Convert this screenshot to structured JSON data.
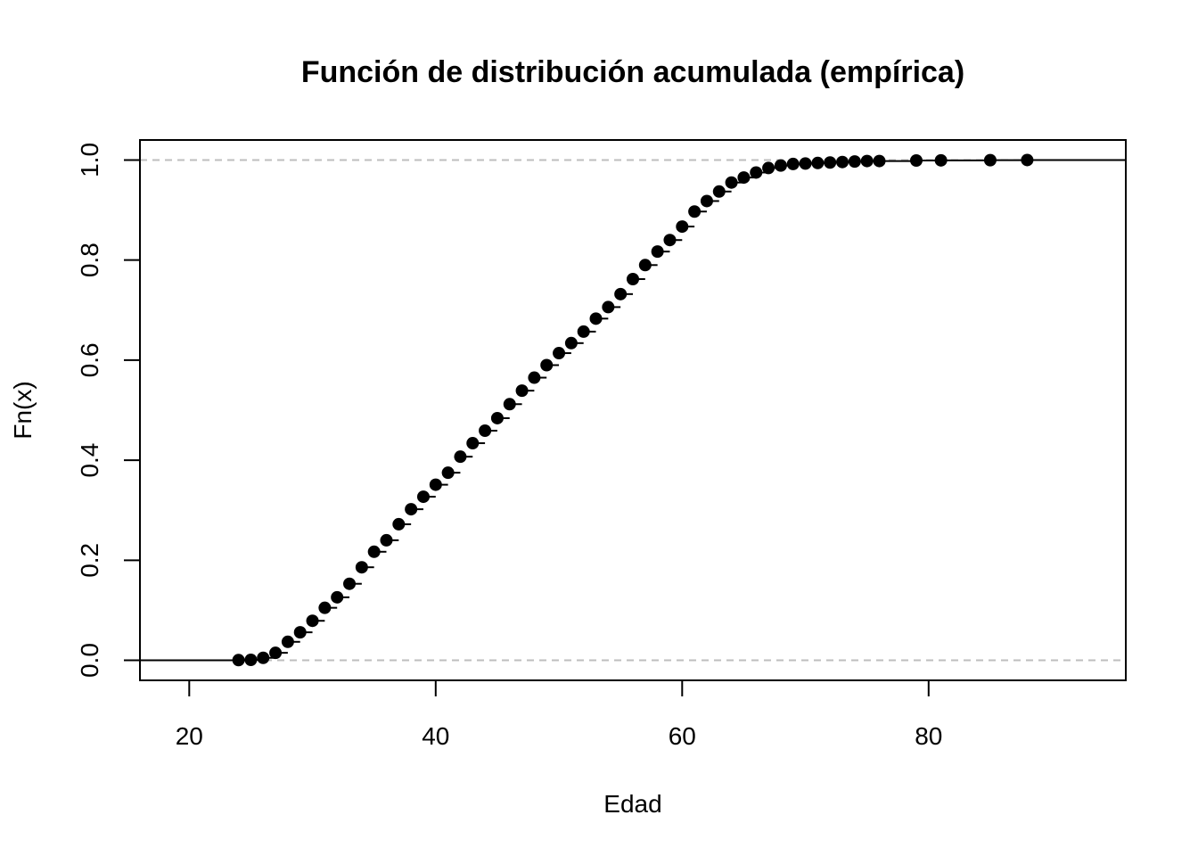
{
  "chart_data": {
    "type": "scatter",
    "subtype": "empirical-cdf-step",
    "title": "Función de distribución acumulada (empírica)",
    "xlabel": "Edad",
    "ylabel": "Fn(x)",
    "xlim": [
      16,
      96
    ],
    "ylim": [
      -0.04,
      1.04
    ],
    "xticks": [
      20,
      40,
      60,
      80
    ],
    "yticks": [
      0.0,
      0.2,
      0.4,
      0.6,
      0.8,
      1.0
    ],
    "xtick_labels": [
      "20",
      "40",
      "60",
      "80"
    ],
    "ytick_labels": [
      "0.0",
      "0.2",
      "0.4",
      "0.6",
      "0.8",
      "1.0"
    ],
    "reference_lines": [
      0,
      1
    ],
    "grid": false,
    "legend": "none",
    "colors": {
      "points": "#000000",
      "steps": "#000000",
      "reference": "#bebebe",
      "frame": "#000000"
    },
    "x": [
      24,
      25,
      26,
      27,
      28,
      29,
      30,
      31,
      32,
      33,
      34,
      35,
      36,
      37,
      38,
      39,
      40,
      41,
      42,
      43,
      44,
      45,
      46,
      47,
      48,
      49,
      50,
      51,
      52,
      53,
      54,
      55,
      56,
      57,
      58,
      59,
      60,
      61,
      62,
      63,
      64,
      65,
      66,
      67,
      68,
      69,
      70,
      71,
      72,
      73,
      74,
      75,
      76,
      79,
      81,
      85,
      88
    ],
    "y": [
      0.0005,
      0.001,
      0.005,
      0.015,
      0.037,
      0.056,
      0.079,
      0.105,
      0.126,
      0.153,
      0.186,
      0.217,
      0.24,
      0.272,
      0.302,
      0.327,
      0.351,
      0.375,
      0.407,
      0.434,
      0.459,
      0.484,
      0.512,
      0.539,
      0.565,
      0.59,
      0.614,
      0.634,
      0.657,
      0.683,
      0.706,
      0.732,
      0.762,
      0.79,
      0.817,
      0.84,
      0.867,
      0.897,
      0.918,
      0.937,
      0.955,
      0.965,
      0.975,
      0.984,
      0.989,
      0.992,
      0.993,
      0.994,
      0.995,
      0.996,
      0.997,
      0.998,
      0.998,
      0.999,
      0.9993,
      0.9997,
      1.0
    ]
  }
}
